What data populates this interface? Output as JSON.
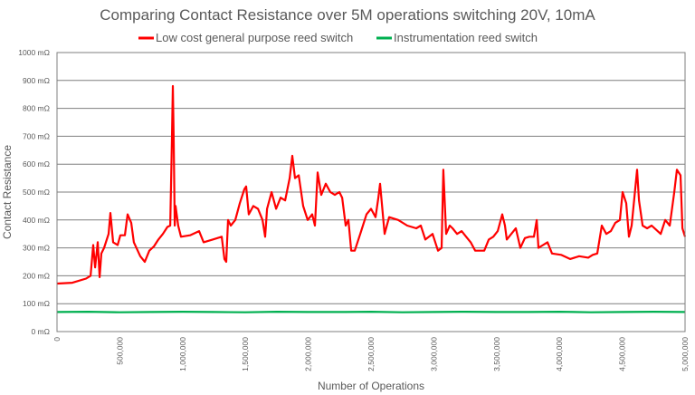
{
  "chart_data": {
    "type": "line",
    "title": "Comparing Contact Resistance over 5M operations switching 20V, 10mA",
    "xlabel": "Number of Operations",
    "ylabel": "Contact Resistance",
    "xlim": [
      0,
      5000000
    ],
    "ylim": [
      0,
      1000
    ],
    "y_unit": "mΩ",
    "grid": true,
    "legend_position": "top",
    "x_ticks": [
      "0",
      "500,000",
      "1,000,000",
      "1,500,000",
      "2,000,000",
      "2,500,000",
      "3,000,000",
      "3,500,000",
      "4,000,000",
      "4,500,000",
      "5,000,000"
    ],
    "y_ticks": [
      "0 mΩ",
      "100 mΩ",
      "200 mΩ",
      "300 mΩ",
      "400 mΩ",
      "500 mΩ",
      "600 mΩ",
      "700 mΩ",
      "800 mΩ",
      "900 mΩ",
      "1000 mΩ"
    ],
    "series": [
      {
        "name": "Low cost general purpose reed switch",
        "color": "#ff0000",
        "x": [
          0,
          122000,
          231000,
          267000,
          288000,
          303000,
          324000,
          339000,
          353000,
          375000,
          411000,
          425000,
          447000,
          483000,
          504000,
          540000,
          562000,
          591000,
          612000,
          663000,
          699000,
          735000,
          771000,
          807000,
          843000,
          879000,
          901000,
          915000,
          922000,
          929000,
          937000,
          944000,
          965000,
          987000,
          1059000,
          1131000,
          1167000,
          1239000,
          1311000,
          1333000,
          1347000,
          1362000,
          1383000,
          1419000,
          1455000,
          1491000,
          1506000,
          1527000,
          1563000,
          1600000,
          1636000,
          1657000,
          1672000,
          1708000,
          1744000,
          1780000,
          1816000,
          1852000,
          1873000,
          1895000,
          1924000,
          1960000,
          1996000,
          2032000,
          2053000,
          2075000,
          2104000,
          2140000,
          2176000,
          2212000,
          2248000,
          2270000,
          2298000,
          2320000,
          2342000,
          2370000,
          2414000,
          2464000,
          2500000,
          2536000,
          2558000,
          2572000,
          2608000,
          2644000,
          2716000,
          2788000,
          2860000,
          2896000,
          2932000,
          2990000,
          3033000,
          3062000,
          3076000,
          3098000,
          3127000,
          3149000,
          3185000,
          3221000,
          3257000,
          3293000,
          3329000,
          3350000,
          3401000,
          3437000,
          3473000,
          3509000,
          3545000,
          3566000,
          3581000,
          3617000,
          3653000,
          3689000,
          3725000,
          3761000,
          3797000,
          3819000,
          3833000,
          3869000,
          3905000,
          3941000,
          4013000,
          4085000,
          4157000,
          4229000,
          4265000,
          4301000,
          4337000,
          4373000,
          4409000,
          4445000,
          4481000,
          4503000,
          4532000,
          4553000,
          4575000,
          4618000,
          4633000,
          4662000,
          4698000,
          4734000,
          4806000,
          4842000,
          4878000,
          4914000,
          4935000,
          4964000,
          4979000,
          5000000
        ],
        "values": [
          172,
          175,
          190,
          200,
          310,
          230,
          320,
          195,
          280,
          300,
          350,
          425,
          320,
          310,
          345,
          345,
          420,
          390,
          320,
          270,
          250,
          290,
          305,
          330,
          350,
          375,
          380,
          690,
          880,
          700,
          380,
          450,
          380,
          340,
          345,
          360,
          320,
          330,
          340,
          260,
          250,
          400,
          380,
          400,
          460,
          510,
          520,
          420,
          450,
          440,
          400,
          340,
          440,
          500,
          440,
          480,
          470,
          550,
          630,
          550,
          560,
          450,
          400,
          420,
          380,
          570,
          490,
          530,
          500,
          490,
          500,
          480,
          380,
          400,
          290,
          290,
          350,
          420,
          440,
          410,
          480,
          530,
          350,
          410,
          400,
          380,
          370,
          380,
          330,
          350,
          290,
          300,
          580,
          350,
          380,
          370,
          350,
          360,
          340,
          320,
          290,
          290,
          290,
          330,
          340,
          360,
          420,
          380,
          330,
          350,
          370,
          300,
          335,
          340,
          340,
          400,
          300,
          310,
          320,
          280,
          275,
          260,
          270,
          265,
          275,
          280,
          380,
          350,
          360,
          390,
          400,
          500,
          460,
          340,
          380,
          580,
          470,
          380,
          370,
          380,
          350,
          400,
          380,
          500,
          580,
          560,
          370,
          340
        ]
      },
      {
        "name": "Instrumentation reed switch",
        "color": "#00b050",
        "x": [
          0,
          250000,
          500000,
          750000,
          1000000,
          1250000,
          1500000,
          1750000,
          2000000,
          2250000,
          2500000,
          2750000,
          3000000,
          3250000,
          3500000,
          3750000,
          4000000,
          4250000,
          4500000,
          4750000,
          5000000
        ],
        "values": [
          70,
          71,
          69,
          70,
          71,
          70,
          69,
          71,
          70,
          70,
          71,
          69,
          70,
          71,
          70,
          70,
          71,
          69,
          70,
          71,
          70
        ]
      }
    ]
  }
}
